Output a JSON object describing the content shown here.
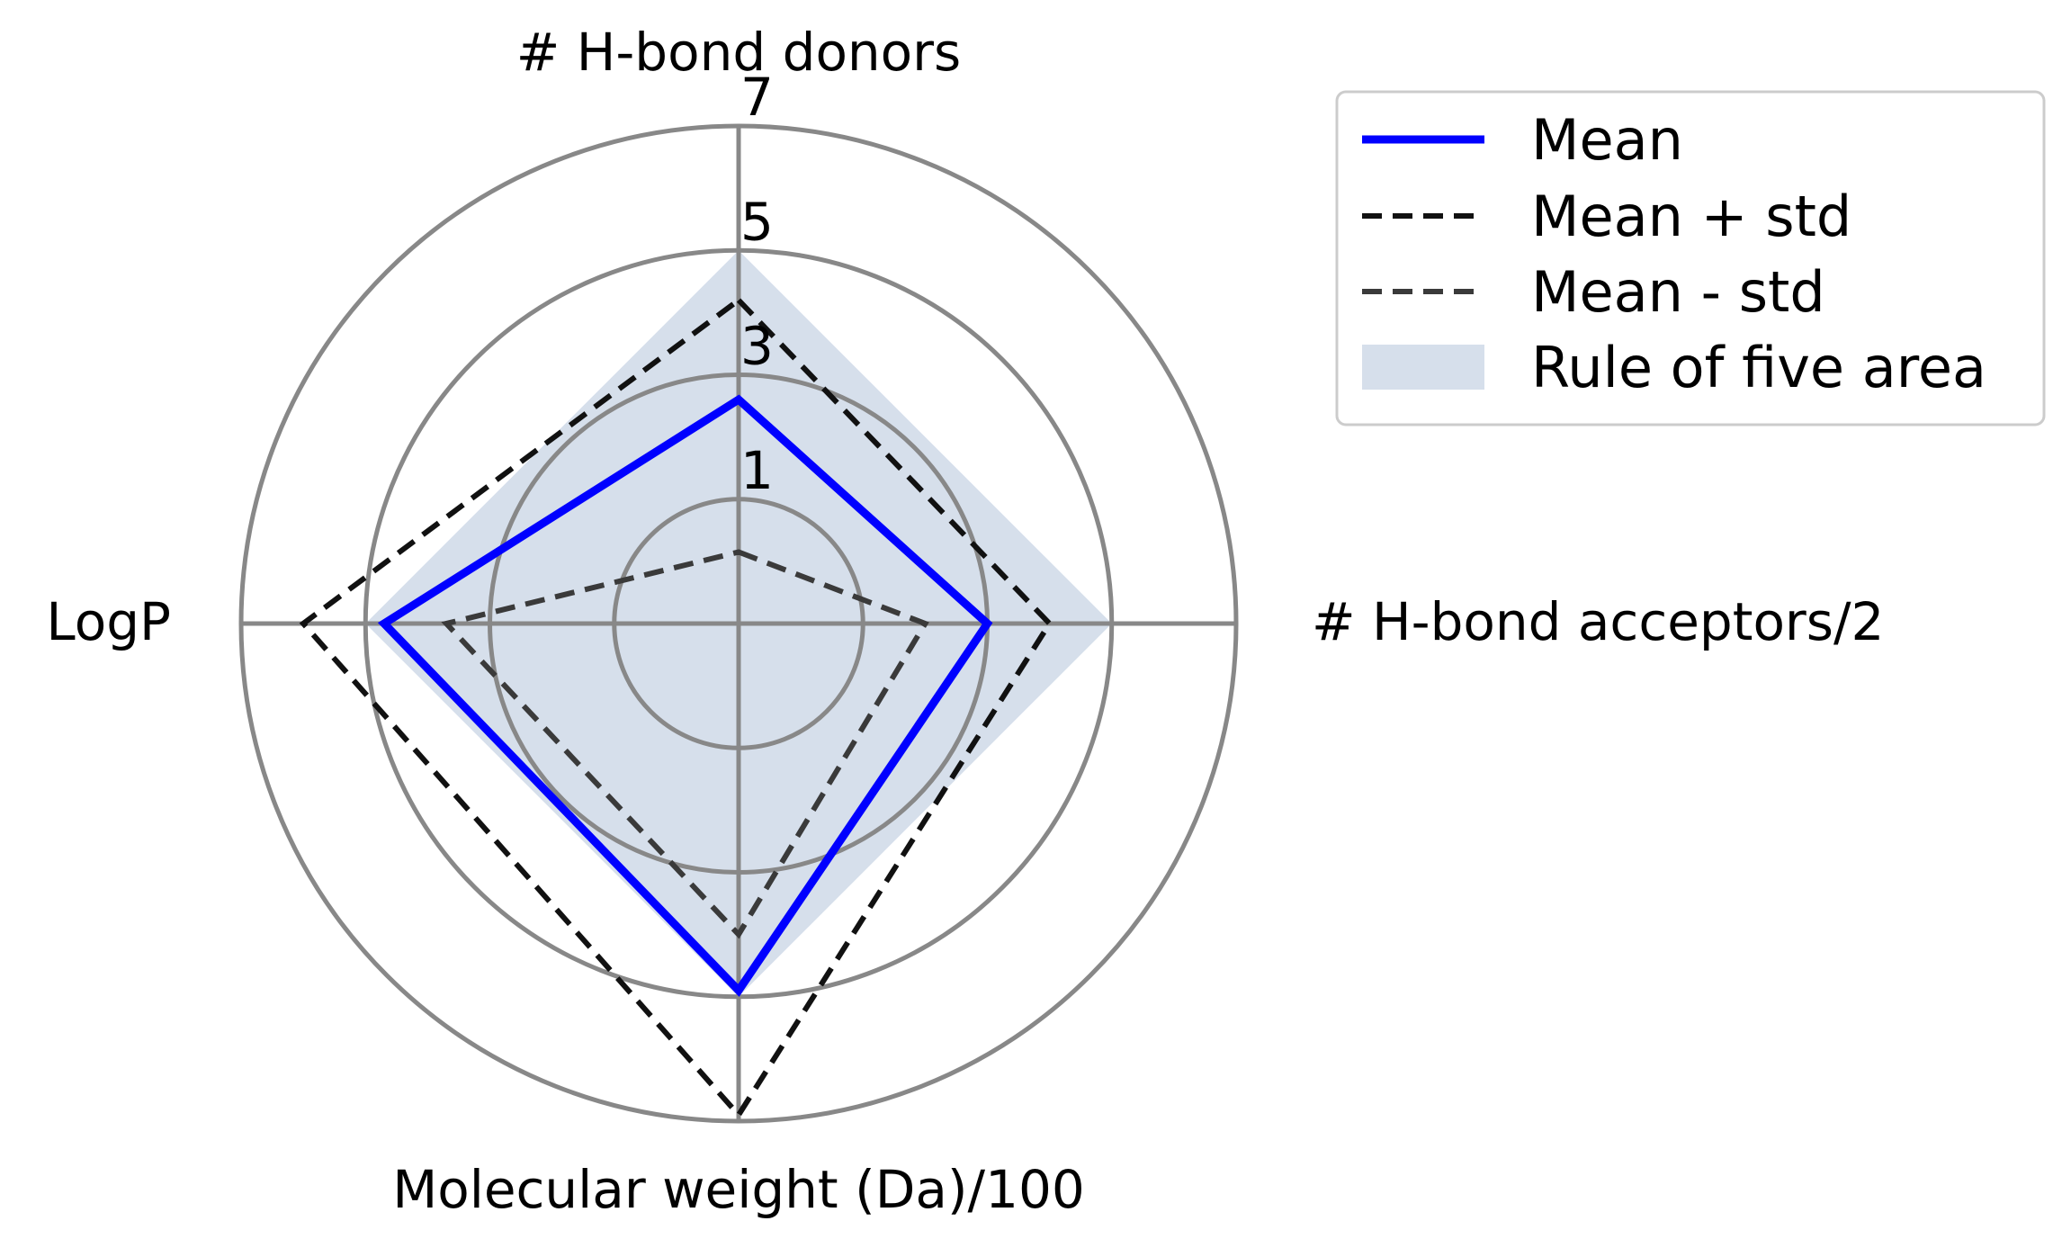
{
  "chart_data": {
    "type": "radar",
    "axes": [
      "# H-bond donors",
      "# H-bond acceptors/2",
      "Molecular weight (Da)/100",
      "LogP"
    ],
    "radial_ticks": [
      "1",
      "3",
      "5",
      "7"
    ],
    "radial_range": [
      -1,
      7
    ],
    "grid": true,
    "legend_position": "upper-right outside",
    "series": [
      {
        "name": "Mean",
        "values": [
          2.6,
          3.0,
          4.9,
          4.7
        ],
        "color": "#0000ff",
        "style": "solid"
      },
      {
        "name": "Mean + std",
        "values": [
          4.2,
          4.0,
          6.9,
          6.0
        ],
        "color": "#111111",
        "style": "dashed"
      },
      {
        "name": "Mean - std",
        "values": [
          0.15,
          2.0,
          4.0,
          3.7
        ],
        "color": "#3a3a3a",
        "style": "dashed"
      },
      {
        "name": "Rule of five area",
        "values": [
          5,
          5,
          5,
          5
        ],
        "color": "#d6dfeb",
        "style": "fill"
      }
    ]
  }
}
